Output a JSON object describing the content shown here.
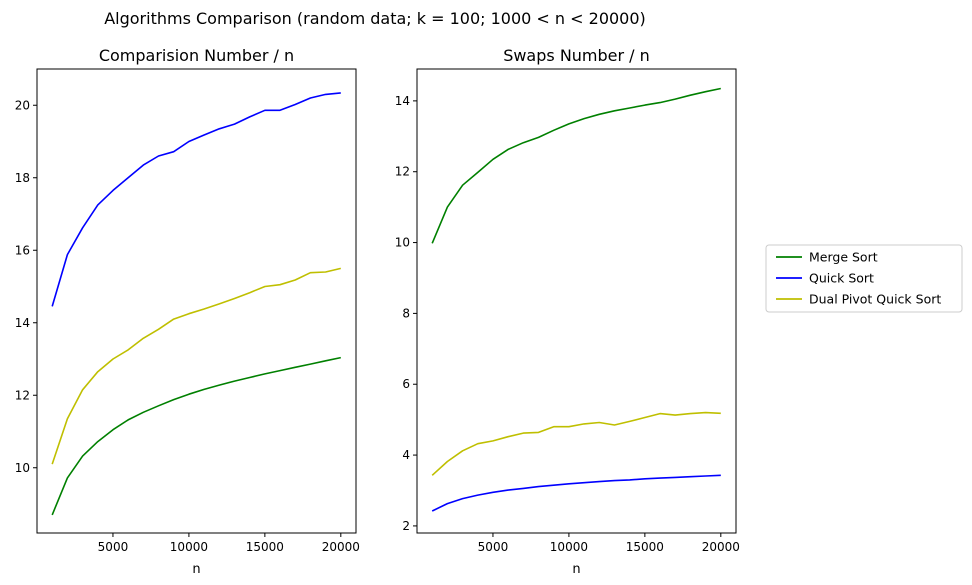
{
  "figure": {
    "suptitle": "Algorithms Comparison (random data;  k = 100;  1000 < n < 20000)"
  },
  "colors": {
    "Merge Sort": "#008000",
    "Quick Sort": "#0000ff",
    "Dual Pivot Quick Sort": "#bfbf00"
  },
  "legend": {
    "placement": "right, outside",
    "entries": [
      "Merge Sort",
      "Quick Sort",
      "Dual Pivot Quick Sort"
    ]
  },
  "chart_data": [
    {
      "type": "line",
      "title": "Comparision Number / n",
      "xlabel": "n",
      "ylabel": "",
      "xlim": [
        0,
        21000
      ],
      "ylim": [
        8.2,
        21.0
      ],
      "xticks": [
        5000,
        10000,
        15000,
        20000
      ],
      "yticks": [
        10,
        12,
        14,
        16,
        18,
        20
      ],
      "x": [
        1000,
        2000,
        3000,
        4000,
        5000,
        6000,
        7000,
        8000,
        9000,
        10000,
        11000,
        12000,
        13000,
        14000,
        15000,
        16000,
        17000,
        18000,
        19000,
        20000
      ],
      "series": [
        {
          "name": "Merge Sort",
          "values": [
            8.7,
            9.72,
            10.32,
            10.72,
            11.05,
            11.32,
            11.53,
            11.71,
            11.88,
            12.03,
            12.16,
            12.28,
            12.39,
            12.49,
            12.59,
            12.68,
            12.77,
            12.86,
            12.95,
            13.04
          ]
        },
        {
          "name": "Quick Sort",
          "values": [
            14.45,
            15.88,
            16.62,
            17.25,
            17.65,
            18.0,
            18.35,
            18.6,
            18.72,
            19.0,
            19.18,
            19.35,
            19.48,
            19.68,
            19.86,
            19.86,
            20.02,
            20.2,
            20.3,
            20.34
          ]
        },
        {
          "name": "Dual Pivot Quick Sort",
          "values": [
            10.1,
            11.35,
            12.15,
            12.65,
            13.0,
            13.25,
            13.57,
            13.82,
            14.1,
            14.25,
            14.38,
            14.52,
            14.67,
            14.83,
            15.0,
            15.05,
            15.18,
            15.38,
            15.4,
            15.5
          ]
        }
      ]
    },
    {
      "type": "line",
      "title": "Swaps Number / n",
      "xlabel": "n",
      "ylabel": "",
      "xlim": [
        0,
        21000
      ],
      "ylim": [
        1.8,
        14.9
      ],
      "xticks": [
        5000,
        10000,
        15000,
        20000
      ],
      "yticks": [
        2,
        4,
        6,
        8,
        10,
        12,
        14
      ],
      "x": [
        1000,
        2000,
        3000,
        4000,
        5000,
        6000,
        7000,
        8000,
        9000,
        10000,
        11000,
        12000,
        13000,
        14000,
        15000,
        16000,
        17000,
        18000,
        19000,
        20000
      ],
      "series": [
        {
          "name": "Merge Sort",
          "values": [
            9.98,
            11.0,
            11.62,
            11.98,
            12.35,
            12.63,
            12.82,
            12.97,
            13.17,
            13.35,
            13.5,
            13.62,
            13.72,
            13.8,
            13.88,
            13.95,
            14.05,
            14.16,
            14.26,
            14.35
          ]
        },
        {
          "name": "Quick Sort",
          "values": [
            2.42,
            2.63,
            2.77,
            2.87,
            2.95,
            3.01,
            3.06,
            3.11,
            3.15,
            3.19,
            3.22,
            3.25,
            3.28,
            3.3,
            3.33,
            3.35,
            3.37,
            3.39,
            3.41,
            3.43
          ]
        },
        {
          "name": "Dual Pivot Quick Sort",
          "values": [
            3.43,
            3.82,
            4.12,
            4.32,
            4.4,
            4.52,
            4.62,
            4.64,
            4.8,
            4.8,
            4.88,
            4.92,
            4.85,
            4.95,
            5.06,
            5.17,
            5.13,
            5.17,
            5.2,
            5.18
          ]
        }
      ]
    }
  ]
}
